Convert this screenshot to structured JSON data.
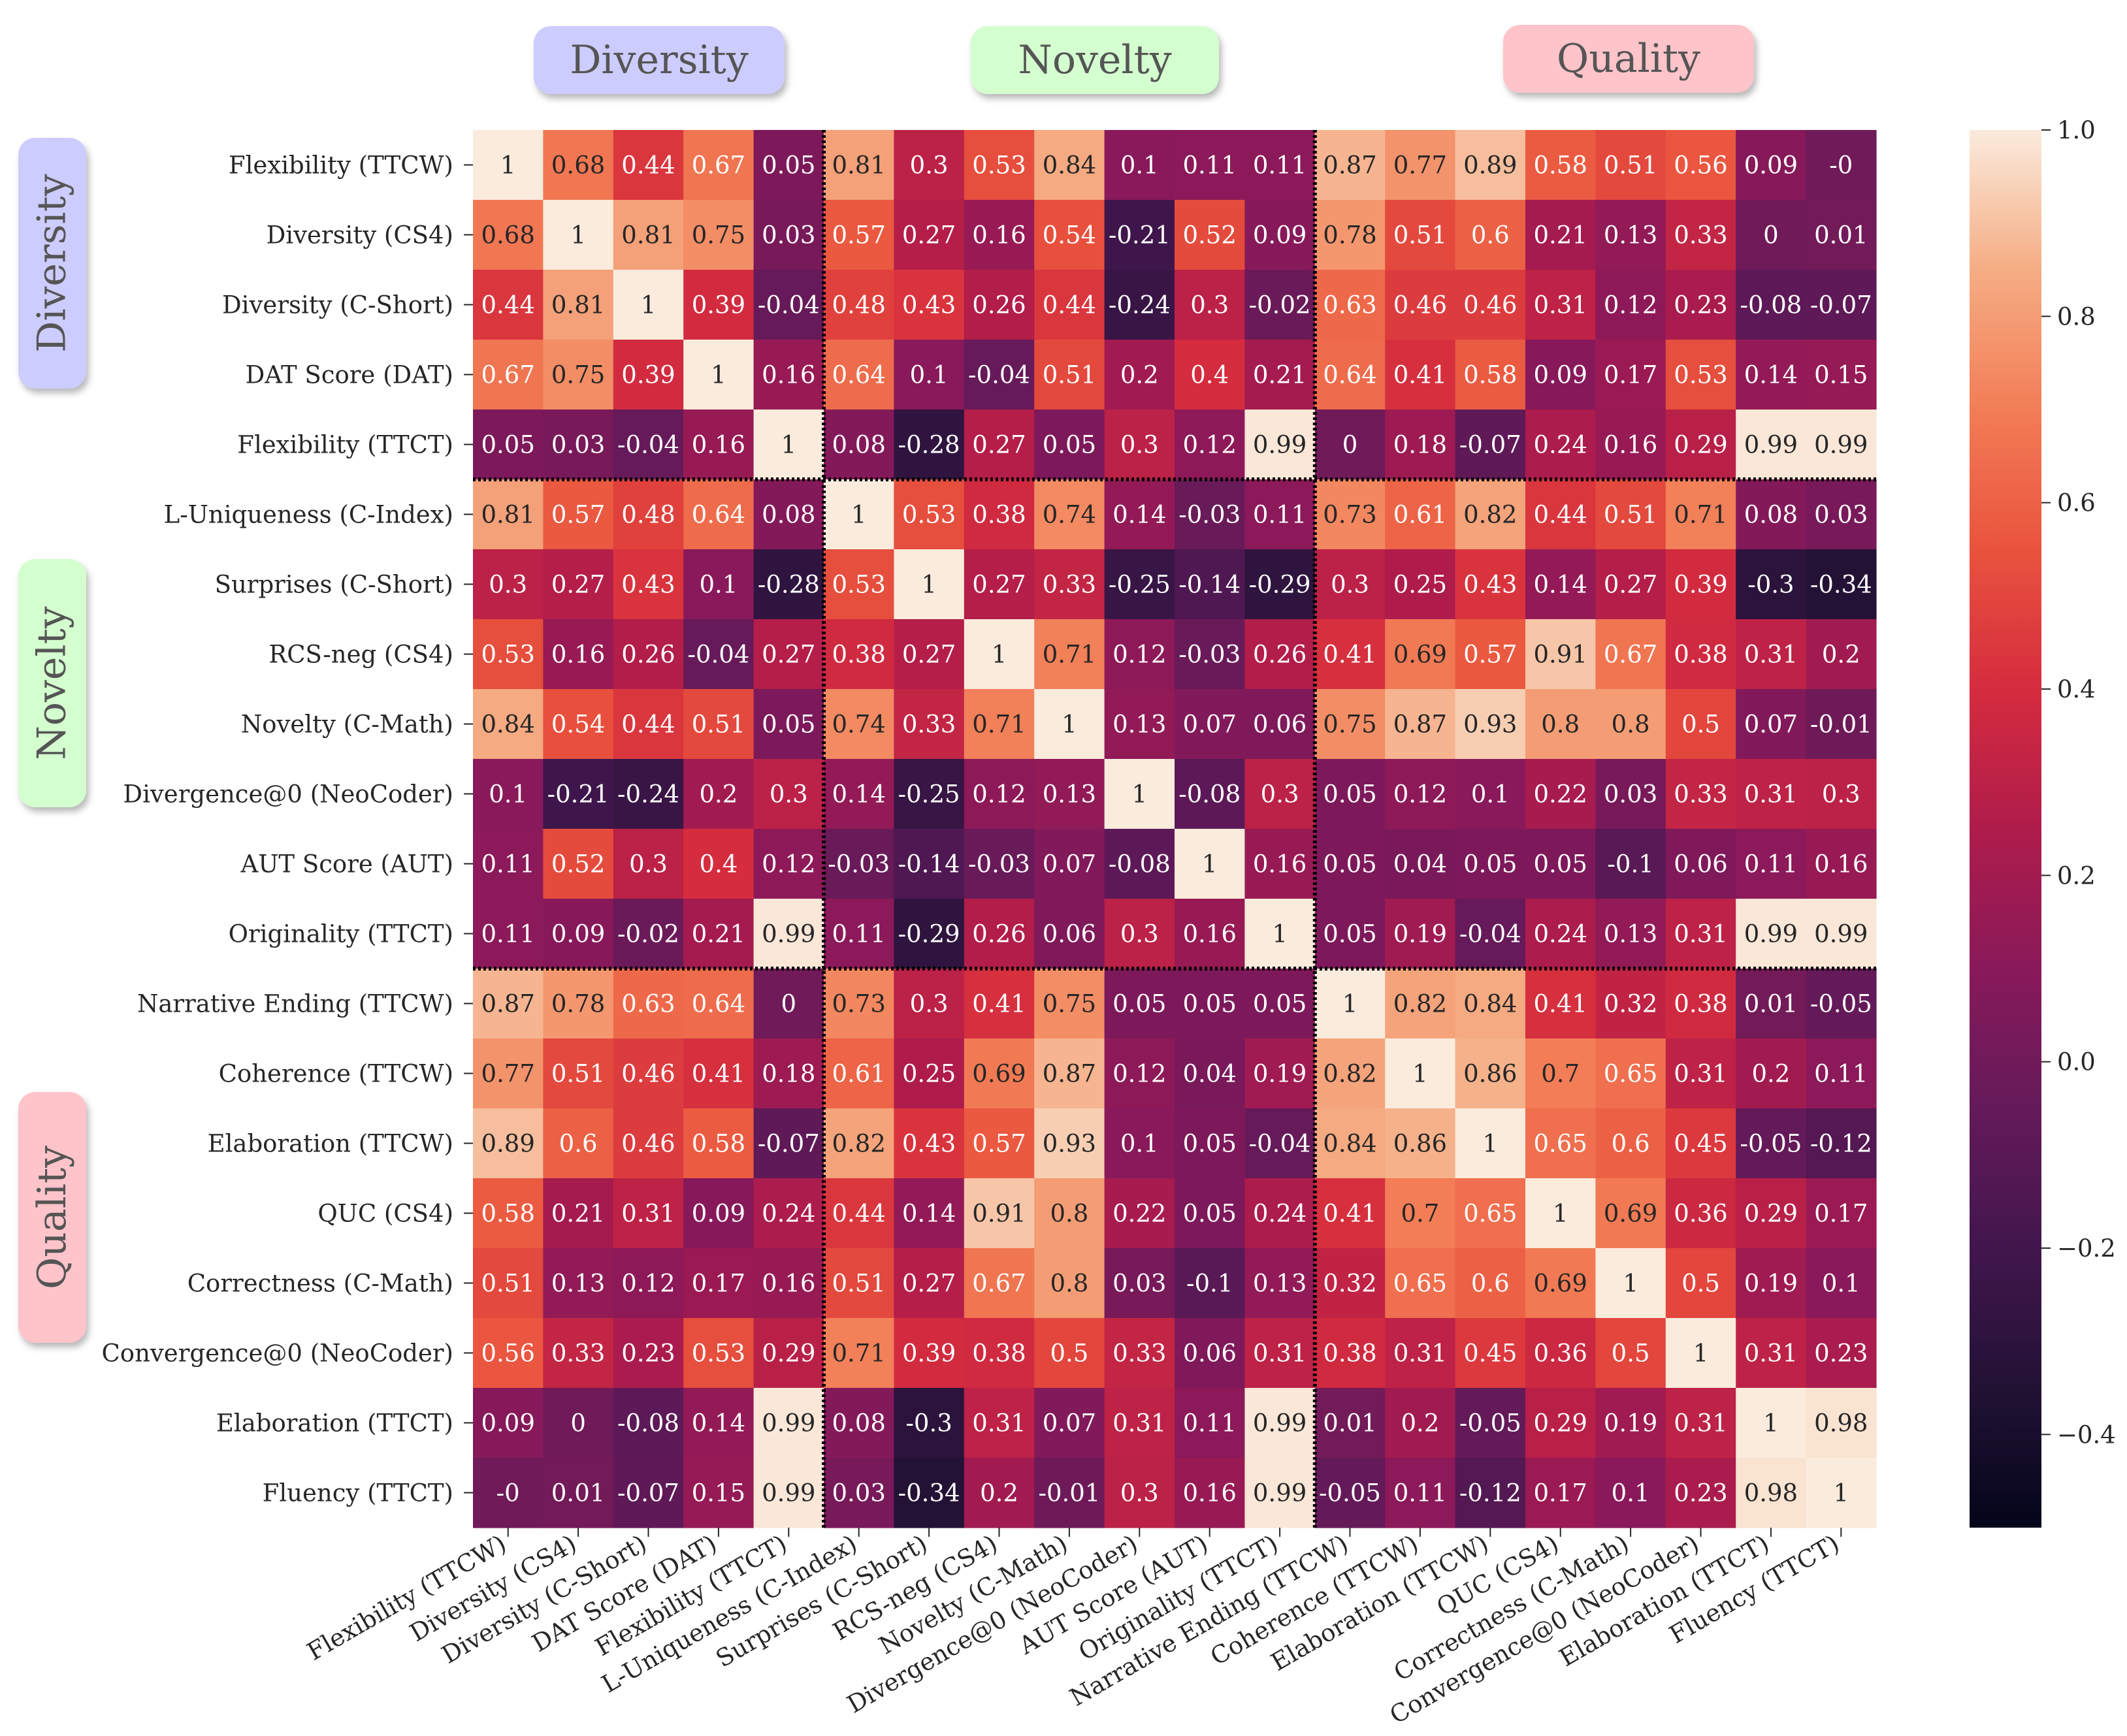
{
  "groups": [
    {
      "label": "Diversity",
      "color": "#ccccff",
      "start": 0,
      "end": 5
    },
    {
      "label": "Novelty",
      "color": "#d4ffcf",
      "start": 5,
      "end": 12
    },
    {
      "label": "Quality",
      "color": "#ffc4ca",
      "start": 12,
      "end": 20
    }
  ],
  "chart_data": {
    "type": "heatmap",
    "title": "",
    "labels": [
      "Flexibility (TTCW)",
      "Diversity (CS4)",
      "Diversity  (C-Short)",
      "DAT Score (DAT)",
      "Flexibility (TTCT)",
      "L-Uniqueness (C-Index)",
      "Surprises (C-Short)",
      "RCS-neg (CS4)",
      "Novelty (C-Math)",
      "Divergence@0 (NeoCoder)",
      "AUT Score (AUT)",
      "Originality (TTCT)",
      "Narrative Ending (TTCW)",
      "Coherence (TTCW)",
      "Elaboration (TTCW)",
      "QUC (CS4)",
      "Correctness (C-Math)",
      "Convergence@0 (NeoCoder)",
      "Elaboration (TTCT)",
      "Fluency (TTCT)"
    ],
    "values": [
      [
        1,
        0.68,
        0.44,
        0.67,
        0.05,
        0.81,
        0.3,
        0.53,
        0.84,
        0.1,
        0.11,
        0.11,
        0.87,
        0.77,
        0.89,
        0.58,
        0.51,
        0.56,
        0.09,
        0
      ],
      [
        0.68,
        1,
        0.81,
        0.75,
        0.03,
        0.57,
        0.27,
        0.16,
        0.54,
        -0.21,
        0.52,
        0.09,
        0.78,
        0.51,
        0.6,
        0.21,
        0.13,
        0.33,
        0,
        0.01
      ],
      [
        0.44,
        0.81,
        1,
        0.39,
        -0.04,
        0.48,
        0.43,
        0.26,
        0.44,
        -0.24,
        0.3,
        -0.02,
        0.63,
        0.46,
        0.46,
        0.31,
        0.12,
        0.23,
        -0.08,
        -0.07
      ],
      [
        0.67,
        0.75,
        0.39,
        1,
        0.16,
        0.64,
        0.1,
        -0.04,
        0.51,
        0.2,
        0.4,
        0.21,
        0.64,
        0.41,
        0.58,
        0.09,
        0.17,
        0.53,
        0.14,
        0.15
      ],
      [
        0.05,
        0.03,
        -0.04,
        0.16,
        1,
        0.08,
        -0.28,
        0.27,
        0.05,
        0.3,
        0.12,
        0.99,
        0,
        0.18,
        -0.07,
        0.24,
        0.16,
        0.29,
        0.99,
        0.99
      ],
      [
        0.81,
        0.57,
        0.48,
        0.64,
        0.08,
        1,
        0.53,
        0.38,
        0.74,
        0.14,
        -0.03,
        0.11,
        0.73,
        0.61,
        0.82,
        0.44,
        0.51,
        0.71,
        0.08,
        0.03
      ],
      [
        0.3,
        0.27,
        0.43,
        0.1,
        -0.28,
        0.53,
        1,
        0.27,
        0.33,
        -0.25,
        -0.14,
        -0.29,
        0.3,
        0.25,
        0.43,
        0.14,
        0.27,
        0.39,
        -0.3,
        -0.34
      ],
      [
        0.53,
        0.16,
        0.26,
        -0.04,
        0.27,
        0.38,
        0.27,
        1,
        0.71,
        0.12,
        -0.03,
        0.26,
        0.41,
        0.69,
        0.57,
        0.91,
        0.67,
        0.38,
        0.31,
        0.2
      ],
      [
        0.84,
        0.54,
        0.44,
        0.51,
        0.05,
        0.74,
        0.33,
        0.71,
        1,
        0.13,
        0.07,
        0.06,
        0.75,
        0.87,
        0.93,
        0.8,
        0.8,
        0.5,
        0.07,
        -0.01
      ],
      [
        0.1,
        -0.21,
        -0.24,
        0.2,
        0.3,
        0.14,
        -0.25,
        0.12,
        0.13,
        1,
        -0.08,
        0.3,
        0.05,
        0.12,
        0.1,
        0.22,
        0.03,
        0.33,
        0.31,
        0.3
      ],
      [
        0.11,
        0.52,
        0.3,
        0.4,
        0.12,
        -0.03,
        -0.14,
        -0.03,
        0.07,
        -0.08,
        1,
        0.16,
        0.05,
        0.04,
        0.05,
        0.05,
        -0.1,
        0.06,
        0.11,
        0.16
      ],
      [
        0.11,
        0.09,
        -0.02,
        0.21,
        0.99,
        0.11,
        -0.29,
        0.26,
        0.06,
        0.3,
        0.16,
        1,
        0.05,
        0.19,
        -0.04,
        0.24,
        0.13,
        0.31,
        0.99,
        0.99
      ],
      [
        0.87,
        0.78,
        0.63,
        0.64,
        0,
        0.73,
        0.3,
        0.41,
        0.75,
        0.05,
        0.05,
        0.05,
        1,
        0.82,
        0.84,
        0.41,
        0.32,
        0.38,
        0.01,
        -0.05
      ],
      [
        0.77,
        0.51,
        0.46,
        0.41,
        0.18,
        0.61,
        0.25,
        0.69,
        0.87,
        0.12,
        0.04,
        0.19,
        0.82,
        1,
        0.86,
        0.7,
        0.65,
        0.31,
        0.2,
        0.11
      ],
      [
        0.89,
        0.6,
        0.46,
        0.58,
        -0.07,
        0.82,
        0.43,
        0.57,
        0.93,
        0.1,
        0.05,
        -0.04,
        0.84,
        0.86,
        1,
        0.65,
        0.6,
        0.45,
        -0.05,
        -0.12
      ],
      [
        0.58,
        0.21,
        0.31,
        0.09,
        0.24,
        0.44,
        0.14,
        0.91,
        0.8,
        0.22,
        0.05,
        0.24,
        0.41,
        0.7,
        0.65,
        1,
        0.69,
        0.36,
        0.29,
        0.17
      ],
      [
        0.51,
        0.13,
        0.12,
        0.17,
        0.16,
        0.51,
        0.27,
        0.67,
        0.8,
        0.03,
        -0.1,
        0.13,
        0.32,
        0.65,
        0.6,
        0.69,
        1,
        0.5,
        0.19,
        0.1
      ],
      [
        0.56,
        0.33,
        0.23,
        0.53,
        0.29,
        0.71,
        0.39,
        0.38,
        0.5,
        0.33,
        0.06,
        0.31,
        0.38,
        0.31,
        0.45,
        0.36,
        0.5,
        1,
        0.31,
        0.23
      ],
      [
        0.09,
        0,
        -0.08,
        0.14,
        0.99,
        0.08,
        -0.3,
        0.31,
        0.07,
        0.31,
        0.11,
        0.99,
        0.01,
        0.2,
        -0.05,
        0.29,
        0.19,
        0.31,
        1,
        0.98
      ],
      [
        0,
        0.01,
        -0.07,
        0.15,
        0.99,
        0.03,
        -0.34,
        0.2,
        -0.01,
        0.3,
        0.16,
        0.99,
        -0.05,
        0.11,
        -0.12,
        0.17,
        0.1,
        0.23,
        0.98,
        1
      ]
    ],
    "colorbar": {
      "min": -0.5,
      "max": 1.0,
      "ticks": [
        1.0,
        0.8,
        0.6,
        0.4,
        0.2,
        0.0,
        -0.2,
        -0.4
      ],
      "tick_labels": [
        "1.0",
        "0.8",
        "0.6",
        "0.4",
        "0.2",
        "0.0",
        "−0.2",
        "−0.4"
      ],
      "colormap": "rocket"
    },
    "group_boundaries": [
      5,
      12
    ],
    "grid": false
  }
}
